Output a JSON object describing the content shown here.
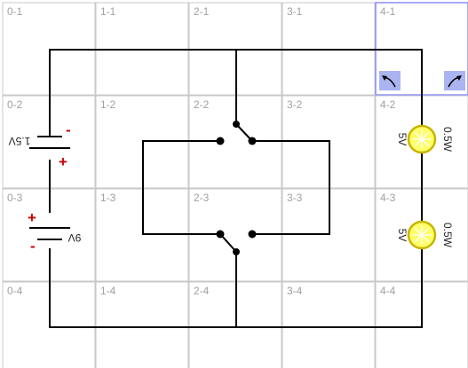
{
  "grid": {
    "cells": [
      [
        "0-1",
        "1-1",
        "2-1",
        "3-1",
        "4-1"
      ],
      [
        "0-2",
        "1-2",
        "2-2",
        "3-2",
        "4-2"
      ],
      [
        "0-3",
        "1-3",
        "2-3",
        "3-3",
        "4-3"
      ],
      [
        "0-4",
        "1-4",
        "2-4",
        "3-4",
        "4-4"
      ]
    ]
  },
  "batteries": [
    {
      "label": "1.5V",
      "plus": "+",
      "minus": "-"
    },
    {
      "label": "9V",
      "plus": "+",
      "minus": "-"
    }
  ],
  "bulbs": [
    {
      "voltage": "5V",
      "power": "0.5W"
    },
    {
      "voltage": "5V",
      "power": "0.5W"
    }
  ],
  "colors": {
    "wire": "#000000",
    "grid_line": "#c8c8c8",
    "cell_label": "#a0a0a0",
    "terminal_sign": "#cc0000",
    "bulb_fill": "#ffff66",
    "bulb_ring": "#c8b400",
    "rotate_button": "#aab4f0"
  },
  "icons": {
    "rotate_left": "rotate-left-icon",
    "rotate_right": "rotate-right-icon"
  }
}
